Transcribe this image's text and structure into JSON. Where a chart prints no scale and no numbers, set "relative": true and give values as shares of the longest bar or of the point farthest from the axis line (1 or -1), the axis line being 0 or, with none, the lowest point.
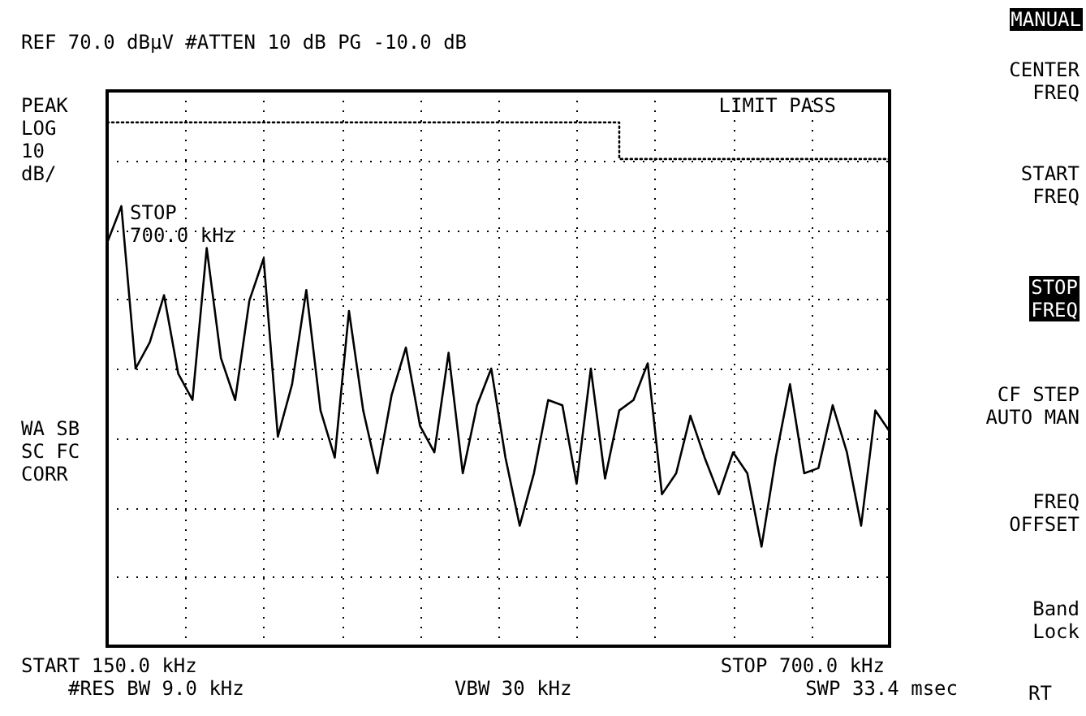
{
  "chart_data": {
    "type": "line",
    "title": "REF 70.0 dBµV #ATTEN 10 dB PG -10.0 dB",
    "annotations": [
      "PEAK\nLOG\n10\ndB/",
      "WA SB\nSC FC\nCORR",
      "LIMIT PASS",
      "STOP\n700.0 kHz",
      "START 150.0 kHz",
      "STOP 700.0 kHz",
      "#RES BW 9.0 kHz",
      "VBW 30 kHz",
      "SWP 33.4 msec",
      "MANUAL",
      "CENTER\nFREQ",
      "START\nFREQ",
      "STOP\nFREQ",
      "CF STEP\nAUTO MAN",
      "FREQ\nOFFSET",
      "Band\nLock",
      "RT"
    ],
    "relative": true,
    "grid": true,
    "marker": "none",
    "categories": [
      null,
      null,
      null,
      null,
      null,
      null,
      null,
      null,
      null,
      null,
      null,
      null,
      null,
      null,
      null,
      null,
      null,
      null,
      null,
      null,
      null,
      null,
      null,
      null,
      null,
      null,
      null,
      null,
      null,
      null,
      null,
      null,
      null,
      null,
      null,
      null,
      null,
      null,
      null,
      null,
      null,
      null,
      null,
      null,
      null,
      null,
      null,
      null,
      null,
      null,
      null,
      null,
      null,
      null,
      null,
      null
    ],
    "series": [
      {
        "color": "#000000",
        "line_style": "solid",
        "values": [
          0.77,
          0.84,
          0.53,
          0.58,
          0.67,
          0.52,
          0.47,
          0.76,
          0.55,
          0.47,
          0.66,
          0.74,
          0.4,
          0.5,
          0.68,
          0.45,
          0.36,
          0.64,
          0.45,
          0.33,
          0.48,
          0.57,
          0.42,
          0.37,
          0.56,
          0.33,
          0.46,
          0.53,
          0.36,
          0.23,
          0.33,
          0.47,
          0.46,
          0.31,
          0.53,
          0.32,
          0.45,
          0.47,
          0.54,
          0.29,
          0.33,
          0.44,
          0.36,
          0.29,
          0.37,
          0.33,
          0.19,
          0.36,
          0.5,
          0.33,
          0.34,
          0.46,
          0.37,
          0.23,
          0.45,
          0.41
        ]
      },
      {
        "type": "step",
        "color": "#000000",
        "line_style": "dotted",
        "values": [
          1,
          1,
          1,
          1,
          1,
          1,
          1,
          1,
          1,
          1,
          1,
          1,
          1,
          1,
          1,
          1,
          1,
          1,
          1,
          1,
          1,
          1,
          1,
          1,
          1,
          1,
          1,
          1,
          1,
          1,
          1,
          1,
          1,
          1,
          1,
          1,
          1,
          0.93,
          0.93,
          0.93,
          0.93,
          0.93,
          0.93,
          0.93,
          0.93,
          0.93,
          0.93,
          0.93,
          0.93,
          0.93,
          0.93,
          0.93,
          0.93,
          0.93,
          0.93,
          0.93
        ]
      }
    ]
  }
}
